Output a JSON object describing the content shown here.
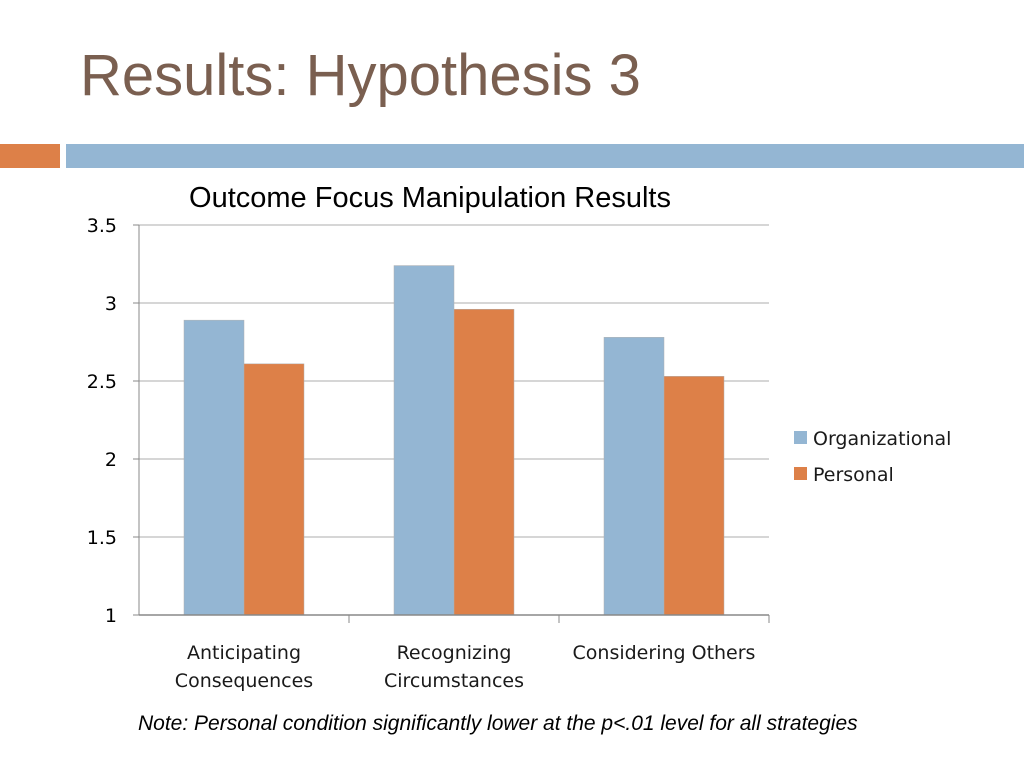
{
  "slide": {
    "title": "Results: Hypothesis 3",
    "note": "Note: Personal condition significantly lower at the p<.01 level for all strategies"
  },
  "colors": {
    "organizational": "#94b6d3",
    "personal": "#dd8048",
    "title": "#7a5f50",
    "gridline": "#c8c8c8"
  },
  "chart_data": {
    "type": "bar",
    "title": "Outcome Focus Manipulation Results",
    "categories": [
      [
        "Anticipating",
        "Consequences"
      ],
      [
        "Recognizing",
        "Circumstances"
      ],
      [
        "Considering Others"
      ]
    ],
    "series": [
      {
        "name": "Organizational",
        "values": [
          2.89,
          3.24,
          2.78
        ]
      },
      {
        "name": "Personal",
        "values": [
          2.61,
          2.96,
          2.53
        ]
      }
    ],
    "ylim": [
      1,
      3.5
    ],
    "yticks": [
      "1",
      "1.5",
      "2",
      "2.5",
      "3",
      "3.5"
    ],
    "grid": true,
    "legend_position": "right"
  }
}
